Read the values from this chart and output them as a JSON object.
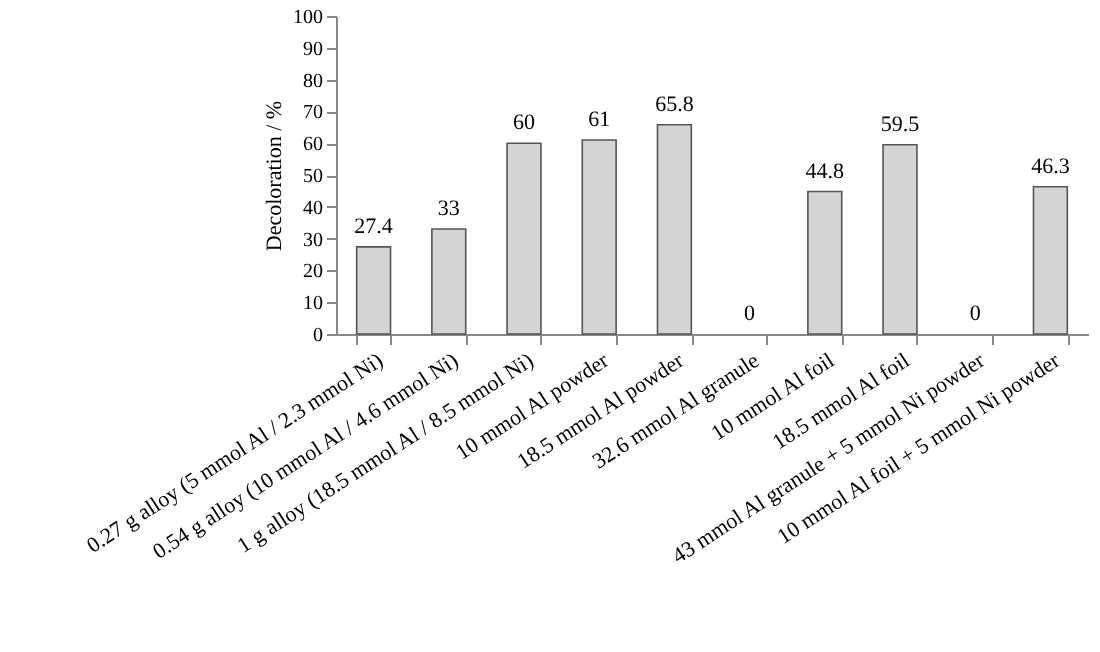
{
  "chart_data": {
    "type": "bar",
    "ylabel": "Decoloration / %",
    "categories": [
      "0.27 g alloy (5 mmol Al / 2.3 mmol Ni)",
      "0.54 g alloy (10 mmol Al / 4.6 mmol Ni)",
      "1 g alloy (18.5 mmol Al / 8.5 mmol Ni)",
      "10 mmol Al powder",
      "18.5 mmol Al powder",
      "32.6 mmol Al granule",
      "10 mmol Al foil",
      "18.5 mmol Al foil",
      "43 mmol Al granule + 5 mmol Ni powder",
      "10 mmol Al foil + 5 mmol Ni powder"
    ],
    "values": [
      27.4,
      33,
      60,
      61,
      65.8,
      0,
      44.8,
      59.5,
      0,
      46.3
    ],
    "color": "#d4d4d4",
    "data_labels": true,
    "grid": false,
    "ylim": [
      0,
      100
    ],
    "yticks": [
      0,
      10,
      20,
      30,
      40,
      50,
      60,
      70,
      80,
      90,
      100
    ]
  }
}
